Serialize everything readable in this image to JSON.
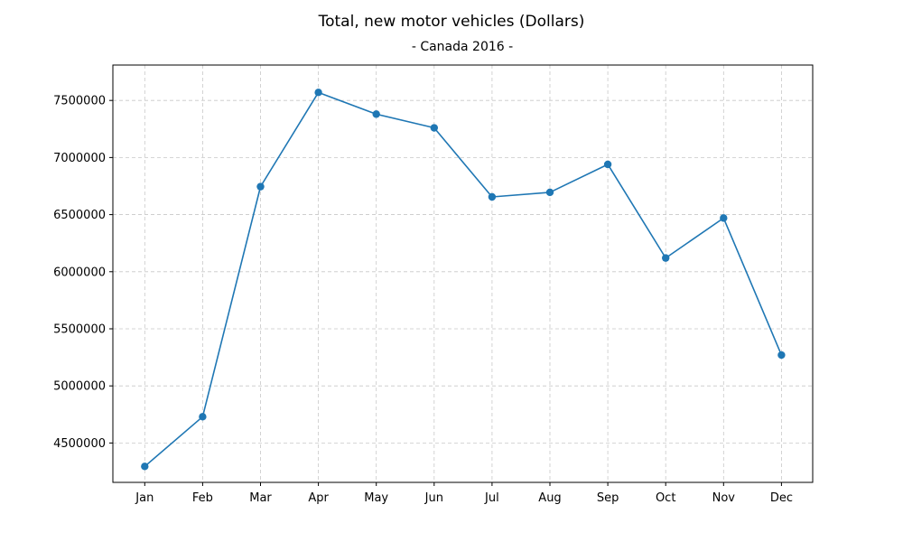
{
  "chart_data": {
    "type": "line",
    "title": "Total, new motor vehicles (Dollars)",
    "subtitle": "- Canada 2016 -",
    "xlabel": "",
    "ylabel": "",
    "categories": [
      "Jan",
      "Feb",
      "Mar",
      "Apr",
      "May",
      "Jun",
      "Jul",
      "Aug",
      "Sep",
      "Oct",
      "Nov",
      "Dec"
    ],
    "series": [
      {
        "values": [
          4295000,
          4730000,
          6745000,
          7570000,
          7380000,
          7260000,
          6655000,
          6695000,
          6940000,
          6120000,
          6470000,
          5270000
        ],
        "color": "#1f77b4"
      }
    ],
    "yticks": [
      4500000,
      5000000,
      5500000,
      6000000,
      6500000,
      7000000,
      7500000
    ],
    "ylim": [
      4155000,
      7810000
    ],
    "grid": true,
    "legend": "none"
  }
}
